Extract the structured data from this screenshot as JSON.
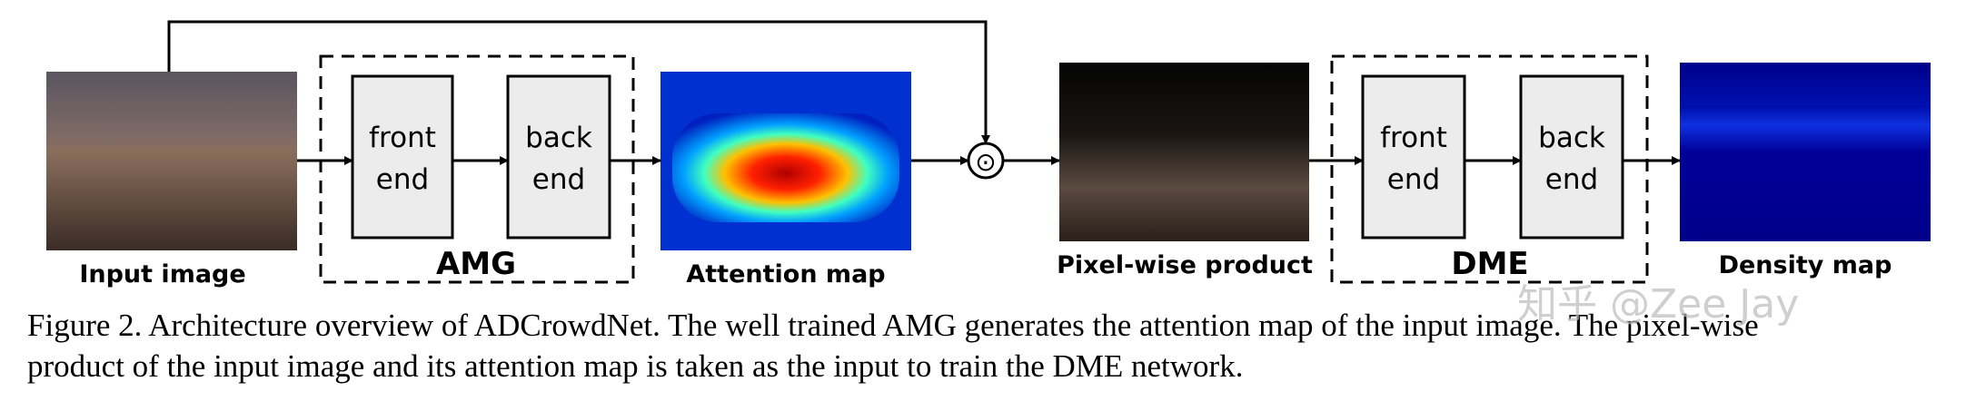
{
  "input_label": "Input image",
  "attention_label": "Attention map",
  "product_label": "Pixel-wise product",
  "density_label": "Density map",
  "operator": "⊙",
  "modules": [
    {
      "label": "AMG",
      "front_end": [
        "front",
        "end"
      ],
      "back_end": [
        "back",
        "end"
      ]
    },
    {
      "label": "DME",
      "front_end": [
        "front",
        "end"
      ],
      "back_end": [
        "back",
        "end"
      ]
    }
  ],
  "caption": [
    "Figure 2. Architecture overview of ADCrowdNet. The well trained AMG generates the attention map of the input image. The pixel-wise",
    "product of the input image and its attention map is taken as the input to train the DME network."
  ],
  "watermark": "知乎 @Zee Jay"
}
